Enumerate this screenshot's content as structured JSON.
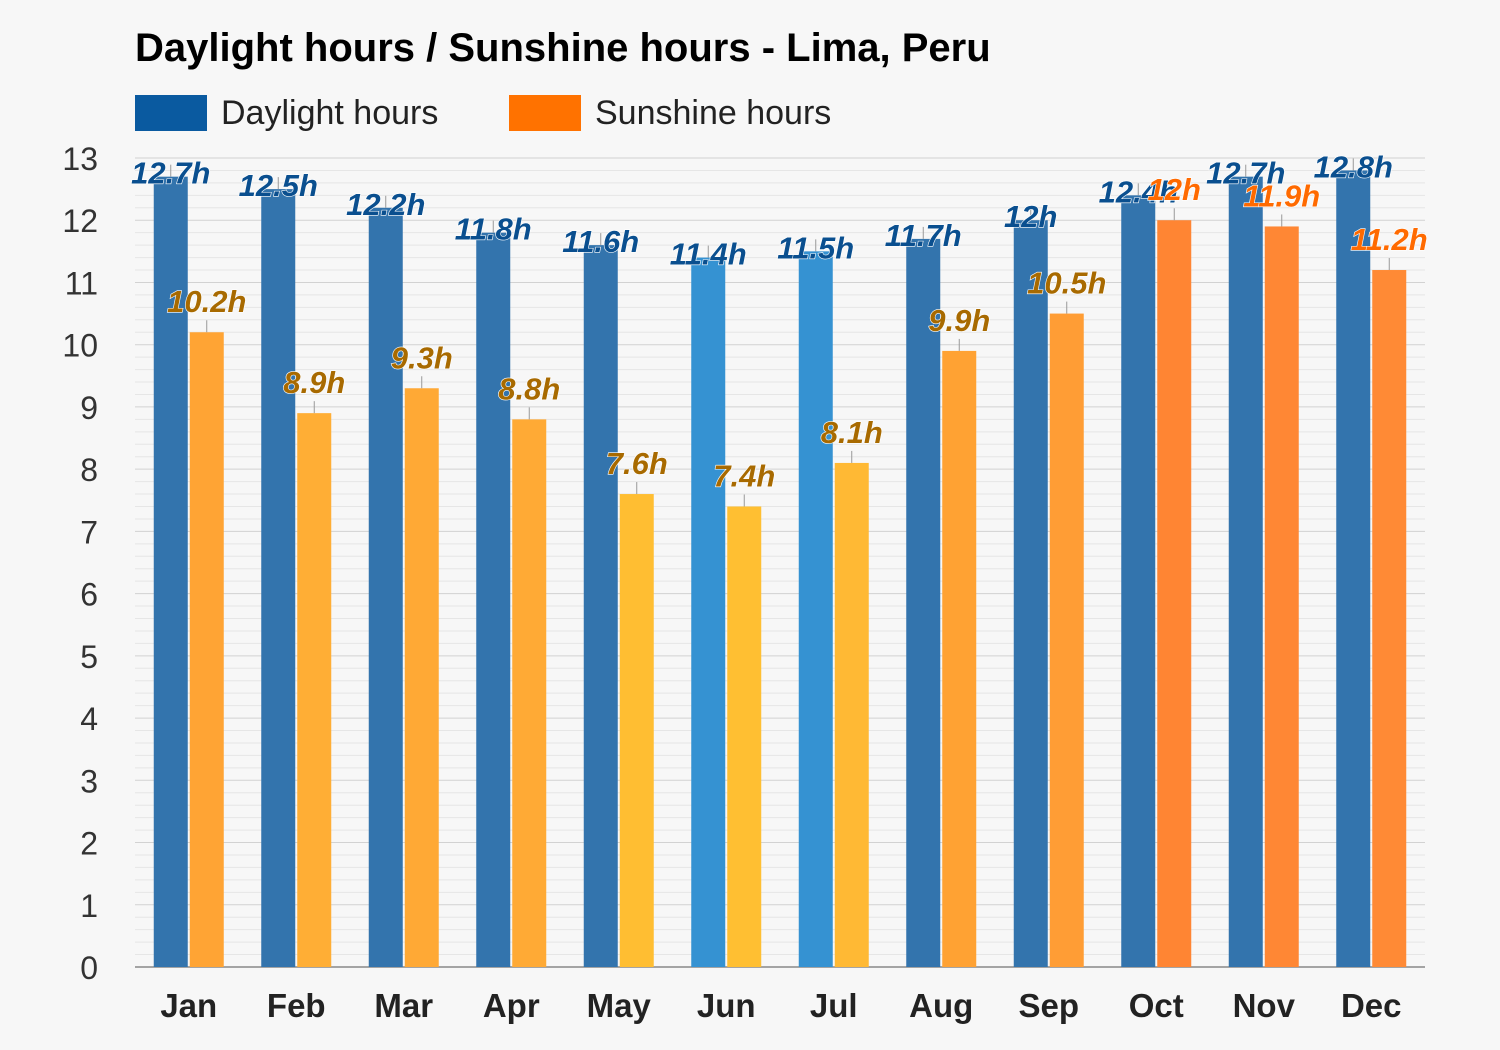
{
  "title": "Daylight hours / Sunshine hours - Lima, Peru",
  "colors": {
    "daylight_legend": "#0a5aa0",
    "sunshine_legend": "#ff7200",
    "daylight_label": "#0a4f8f",
    "sunshine_label_warm": "#a86a00",
    "sunshine_label_hot": "#ff6a00"
  },
  "chart_data": {
    "type": "bar",
    "categories": [
      "Jan",
      "Feb",
      "Mar",
      "Apr",
      "May",
      "Jun",
      "Jul",
      "Aug",
      "Sep",
      "Oct",
      "Nov",
      "Dec"
    ],
    "series": [
      {
        "name": "Daylight hours",
        "values": [
          12.7,
          12.5,
          12.2,
          11.8,
          11.6,
          11.4,
          11.5,
          11.7,
          12,
          12.4,
          12.7,
          12.8
        ],
        "labels": [
          "12.7h",
          "12.5h",
          "12.2h",
          "11.8h",
          "11.6h",
          "11.4h",
          "11.5h",
          "11.7h",
          "12h",
          "12.4h",
          "12.7h",
          "12.8h"
        ],
        "colors": [
          "#3374ad",
          "#3374ad",
          "#3374ad",
          "#3374ad",
          "#3374ad",
          "#3592d2",
          "#3592d2",
          "#3374ad",
          "#3374ad",
          "#3374ad",
          "#3374ad",
          "#3374ad"
        ]
      },
      {
        "name": "Sunshine hours",
        "values": [
          10.2,
          8.9,
          9.3,
          8.8,
          7.6,
          7.4,
          8.1,
          9.9,
          10.5,
          12,
          11.9,
          11.2
        ],
        "labels": [
          "10.2h",
          "8.9h",
          "9.3h",
          "8.8h",
          "7.6h",
          "7.4h",
          "8.1h",
          "9.9h",
          "10.5h",
          "12h",
          "11.9h",
          "11.2h"
        ],
        "colors": [
          "#ffa434",
          "#ffae35",
          "#ffa935",
          "#ffaa35",
          "#ffbe32",
          "#ffbf32",
          "#ffb934",
          "#ffa233",
          "#ff9d35",
          "#ff8533",
          "#ff8734",
          "#ff8a35"
        ]
      }
    ],
    "ylim": [
      0,
      13
    ],
    "yticks": [
      0,
      1,
      2,
      3,
      4,
      5,
      6,
      7,
      8,
      9,
      10,
      11,
      12,
      13
    ],
    "grid": true,
    "legend_position": "top-left"
  }
}
